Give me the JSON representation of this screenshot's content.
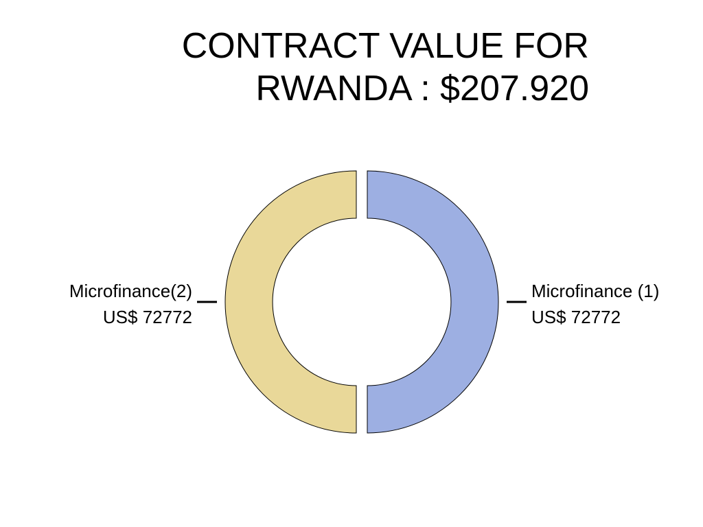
{
  "chart_data": {
    "type": "pie",
    "title": "CONTRACT VALUE FOR RWANDA : $207.920",
    "categories": [
      "Microfinance (1)",
      "Microfinance(2)"
    ],
    "values": [
      72772,
      72772
    ],
    "value_labels": [
      "US$ 72772",
      "US$ 72772"
    ],
    "colors": [
      "#9dafe2",
      "#e9d899"
    ],
    "donut": true
  }
}
